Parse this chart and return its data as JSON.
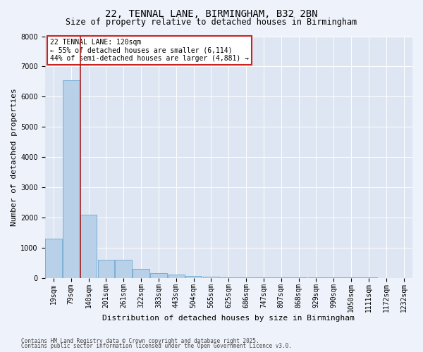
{
  "title_line1": "22, TENNAL LANE, BIRMINGHAM, B32 2BN",
  "title_line2": "Size of property relative to detached houses in Birmingham",
  "xlabel": "Distribution of detached houses by size in Birmingham",
  "ylabel": "Number of detached properties",
  "annotation_title": "22 TENNAL LANE: 120sqm",
  "annotation_line2": "← 55% of detached houses are smaller (6,114)",
  "annotation_line3": "44% of semi-detached houses are larger (4,881) →",
  "bar_labels": [
    "19sqm",
    "79sqm",
    "140sqm",
    "201sqm",
    "261sqm",
    "322sqm",
    "383sqm",
    "443sqm",
    "504sqm",
    "565sqm",
    "625sqm",
    "686sqm",
    "747sqm",
    "807sqm",
    "868sqm",
    "929sqm",
    "990sqm",
    "1050sqm",
    "1111sqm",
    "1172sqm",
    "1232sqm"
  ],
  "bar_values": [
    1300,
    6550,
    2100,
    600,
    600,
    300,
    150,
    100,
    55,
    30,
    10,
    5,
    5,
    3,
    3,
    2,
    2,
    2,
    2,
    1,
    1
  ],
  "bar_color": "#b8d0e8",
  "bar_edge_color": "#6fa8d0",
  "vline_color": "#aa2222",
  "ylim": [
    0,
    8000
  ],
  "yticks": [
    0,
    1000,
    2000,
    3000,
    4000,
    5000,
    6000,
    7000,
    8000
  ],
  "annotation_box_color": "#cc2222",
  "footnote1": "Contains HM Land Registry data © Crown copyright and database right 2025.",
  "footnote2": "Contains public sector information licensed under the Open Government Licence v3.0.",
  "bg_color": "#eef2fa",
  "plot_bg": "#dde6f2",
  "grid_color": "#ffffff",
  "title1_fontsize": 10,
  "title2_fontsize": 8.5,
  "ylabel_fontsize": 8,
  "xlabel_fontsize": 8,
  "tick_fontsize": 7,
  "annot_fontsize": 7,
  "footnote_fontsize": 5.5
}
